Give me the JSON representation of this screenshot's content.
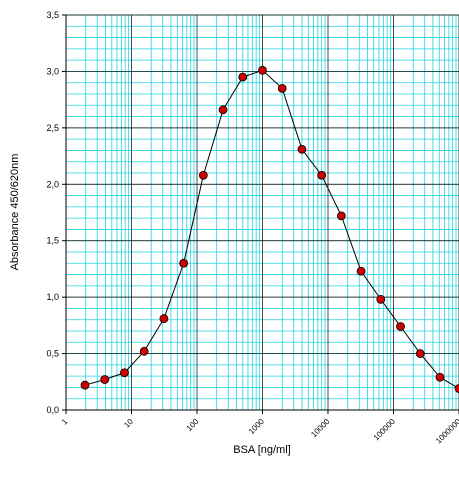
{
  "chart_data": {
    "type": "line",
    "title": "",
    "xlabel": "BSA [ng/ml]",
    "ylabel": "Absorbance 450/620nm",
    "x_scale": "log",
    "xlim": [
      1,
      1000000
    ],
    "ylim": [
      0,
      3.5
    ],
    "grid": true,
    "x_ticks": [
      1,
      10,
      100,
      1000,
      10000,
      100000,
      1000000
    ],
    "x_tick_labels": [
      "1",
      "10",
      "100",
      "1000",
      "10000",
      "100000",
      "1000000"
    ],
    "y_ticks": [
      0,
      0.5,
      1,
      1.5,
      2,
      2.5,
      3,
      3.5
    ],
    "y_tick_labels": [
      "0,0",
      "0,5",
      "1,0",
      "1,5",
      "2,0",
      "2,5",
      "3,0",
      "3,5"
    ],
    "series": [
      {
        "color": "#cc0000",
        "line_color": "#000000",
        "x": [
          1.95,
          3.9,
          7.8,
          15.6,
          31.25,
          62.5,
          125,
          250,
          500,
          1000,
          2000,
          4000,
          8000,
          16000,
          32000,
          64000,
          128000,
          256000,
          512000,
          1000000
        ],
        "y": [
          0.22,
          0.27,
          0.33,
          0.52,
          0.81,
          1.3,
          2.08,
          2.66,
          2.95,
          3.01,
          2.85,
          2.31,
          2.08,
          1.72,
          1.23,
          0.98,
          0.74,
          0.5,
          0.29,
          0.19
        ]
      }
    ]
  }
}
